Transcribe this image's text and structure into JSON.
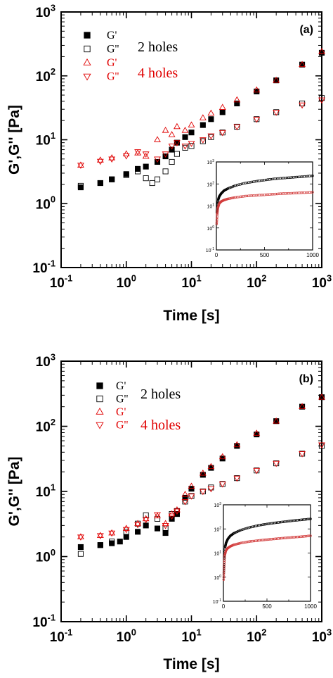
{
  "colors": {
    "black": "#000000",
    "red": "#e00000",
    "inset_red": "#d23b3b"
  },
  "chart_data": [
    {
      "type": "scatter",
      "panel_label": "(a)",
      "xlabel": "Time [s]",
      "ylabel": "G',G'' [Pa]",
      "x_scale": "log",
      "y_scale": "log",
      "xlim": [
        0.1,
        1000
      ],
      "ylim": [
        0.1,
        1000
      ],
      "x_ticks": [
        "10^-1",
        "10^0",
        "10^1",
        "10^2",
        "10^3"
      ],
      "y_ticks": [
        "10^-1",
        "10^0",
        "10^1",
        "10^2",
        "10^3"
      ],
      "legend": {
        "placement": "top-left",
        "entries": [
          "G'",
          "G''",
          "G'",
          "G''"
        ],
        "group_labels": [
          "2 holes",
          "4 holes"
        ]
      },
      "series": [
        {
          "name": "G'",
          "group": "2 holes",
          "marker": "filled-square",
          "color": "#000000",
          "x": [
            0.2,
            0.4,
            0.6,
            1,
            1.5,
            2,
            3,
            4,
            5,
            6,
            8,
            10,
            15,
            20,
            30,
            50,
            100,
            200,
            500,
            1000
          ],
          "y": [
            1.8,
            2.1,
            2.4,
            2.9,
            3.5,
            3.8,
            4.5,
            5.5,
            7,
            9,
            11,
            13,
            17,
            21,
            27,
            37,
            57,
            85,
            150,
            230
          ]
        },
        {
          "name": "G''",
          "group": "2 holes",
          "marker": "open-square",
          "color": "#000000",
          "x": [
            0.2,
            0.4,
            0.6,
            1,
            1.5,
            2,
            2.5,
            3,
            4,
            5,
            6,
            8,
            10,
            15,
            20,
            30,
            50,
            100,
            200,
            500,
            1000
          ],
          "y": [
            1.9,
            2.1,
            2.4,
            2.8,
            3.2,
            2.5,
            2.1,
            2.4,
            3.2,
            4.5,
            6,
            7.5,
            8,
            9.5,
            11,
            13,
            16,
            21,
            27,
            37,
            45
          ]
        },
        {
          "name": "G'",
          "group": "4 holes",
          "marker": "open-triangle-up",
          "color": "#e00000",
          "x": [
            0.2,
            0.4,
            0.6,
            1,
            1.5,
            2,
            3,
            4,
            5,
            6,
            8,
            10,
            15,
            20,
            30,
            50,
            100,
            200,
            500,
            1000
          ],
          "y": [
            4,
            4.8,
            5.2,
            6,
            6.2,
            5.5,
            10,
            14,
            12,
            16,
            14,
            17,
            22,
            26,
            32,
            42,
            60,
            85,
            150,
            240
          ]
        },
        {
          "name": "G''",
          "group": "4 holes",
          "marker": "open-triangle-down",
          "color": "#e00000",
          "x": [
            0.2,
            0.4,
            0.6,
            1,
            1.5,
            2,
            3,
            4,
            5,
            6,
            8,
            10,
            15,
            20,
            30,
            50,
            100,
            200,
            500,
            1000
          ],
          "y": [
            4,
            4.6,
            5,
            5.6,
            6.5,
            6,
            5,
            6,
            8,
            9,
            8,
            8.8,
            10,
            11.5,
            13,
            16,
            21,
            27,
            35,
            42
          ]
        }
      ],
      "inset": {
        "x_scale": "linear",
        "y_scale": "log",
        "xlim": [
          0,
          1000
        ],
        "ylim": [
          0.1,
          1000
        ],
        "x_ticks": [
          "0",
          "500",
          "1000"
        ],
        "y_ticks": [
          "10^-1",
          "10^0",
          "10^1",
          "10^2",
          "10^3"
        ],
        "series": [
          {
            "name": "G'",
            "color": "#000000",
            "x": [
              5,
              10,
              20,
              30,
              50,
              80,
              120,
              200,
              300,
              400,
              500,
              600,
              700,
              800,
              900,
              1000
            ],
            "y": [
              5,
              9,
              20,
              27,
              37,
              50,
              62,
              85,
              110,
              130,
              150,
              170,
              185,
              200,
              215,
              235
            ]
          },
          {
            "name": "G''",
            "color": "#d23b3b",
            "x": [
              3,
              8,
              15,
              30,
              50,
              80,
              120,
              200,
              300,
              400,
              500,
              600,
              700,
              800,
              900,
              1000
            ],
            "y": [
              1.5,
              4,
              8,
              13,
              16,
              18.5,
              21,
              24.5,
              28,
              30,
              32,
              34.5,
              36.5,
              38,
              40,
              42
            ]
          }
        ]
      }
    },
    {
      "type": "scatter",
      "panel_label": "(b)",
      "xlabel": "Time [s]",
      "ylabel": "G',G'' [Pa]",
      "x_scale": "log",
      "y_scale": "log",
      "xlim": [
        0.1,
        1000
      ],
      "ylim": [
        0.1,
        1000
      ],
      "x_ticks": [
        "10^-1",
        "10^0",
        "10^1",
        "10^2",
        "10^3"
      ],
      "y_ticks": [
        "10^-1",
        "10^0",
        "10^1",
        "10^2",
        "10^3"
      ],
      "legend": {
        "placement": "top-left",
        "entries": [
          "G'",
          "G''",
          "G'",
          "G''"
        ],
        "group_labels": [
          "2 holes",
          "4 holes"
        ]
      },
      "series": [
        {
          "name": "G'",
          "group": "2 holes",
          "marker": "filled-square",
          "color": "#000000",
          "x": [
            0.2,
            0.4,
            0.6,
            0.8,
            1,
            1.5,
            2,
            3,
            4,
            5,
            6,
            8,
            10,
            15,
            20,
            30,
            50,
            100,
            200,
            500,
            1000
          ],
          "y": [
            1.4,
            1.5,
            1.6,
            1.7,
            2,
            2.4,
            3,
            2.7,
            2.3,
            3.8,
            4.5,
            8,
            11,
            18,
            23,
            32,
            50,
            75,
            120,
            200,
            280
          ]
        },
        {
          "name": "G''",
          "group": "2 holes",
          "marker": "open-square",
          "color": "#000000",
          "x": [
            0.2,
            0.4,
            0.6,
            1,
            1.5,
            2,
            3,
            4,
            5,
            6,
            8,
            10,
            15,
            20,
            30,
            50,
            100,
            200,
            500,
            1000
          ],
          "y": [
            1.1,
            1.5,
            1.7,
            2.4,
            3.2,
            4.3,
            3.8,
            2.7,
            4.5,
            5,
            7,
            8.5,
            10,
            11.5,
            13,
            16,
            21,
            27,
            38,
            50
          ]
        },
        {
          "name": "G'",
          "group": "4 holes",
          "marker": "open-triangle-up",
          "color": "#e00000",
          "x": [
            0.2,
            0.4,
            0.6,
            1,
            1.5,
            2,
            3,
            4,
            5,
            6,
            8,
            10,
            15,
            20,
            30,
            50,
            100,
            200,
            500,
            1000
          ],
          "y": [
            2,
            2.1,
            2.3,
            2.7,
            3.2,
            3.8,
            4.2,
            3.2,
            4.5,
            5.2,
            9,
            12,
            19,
            24,
            34,
            52,
            78,
            120,
            200,
            280
          ]
        },
        {
          "name": "G''",
          "group": "4 holes",
          "marker": "open-triangle-down",
          "color": "#e00000",
          "x": [
            0.2,
            0.4,
            0.6,
            1,
            1.5,
            2,
            3,
            4,
            5,
            6,
            8,
            10,
            15,
            20,
            30,
            50,
            100,
            200,
            500,
            1000
          ],
          "y": [
            2,
            2.1,
            2.3,
            2.6,
            3.1,
            3.7,
            4.4,
            3,
            4.2,
            5,
            7,
            8.5,
            10,
            11,
            13,
            16,
            21,
            27,
            38,
            52
          ]
        }
      ],
      "inset": {
        "x_scale": "linear",
        "y_scale": "log",
        "xlim": [
          0,
          1000
        ],
        "ylim": [
          0.1,
          1000
        ],
        "x_ticks": [
          "0",
          "500",
          "1000"
        ],
        "y_ticks": [
          "10^-1",
          "10^0",
          "10^1",
          "10^2",
          "10^3"
        ],
        "series": [
          {
            "name": "G'",
            "color": "#000000",
            "x": [
              5,
              10,
              20,
              30,
              50,
              80,
              120,
              200,
              300,
              400,
              500,
              600,
              700,
              800,
              900,
              1000
            ],
            "y": [
              1.5,
              5,
              18,
              26,
              38,
              52,
              66,
              90,
              115,
              140,
              160,
              180,
              200,
              220,
              240,
              260
            ]
          },
          {
            "name": "G''",
            "color": "#d23b3b",
            "x": [
              3,
              8,
              15,
              30,
              50,
              80,
              120,
              200,
              300,
              400,
              500,
              600,
              700,
              800,
              900,
              1000
            ],
            "y": [
              0.8,
              3,
              8,
              13,
              16,
              19,
              22,
              26,
              30,
              33,
              36,
              39,
              42,
              45,
              48,
              52
            ]
          }
        ]
      }
    }
  ]
}
